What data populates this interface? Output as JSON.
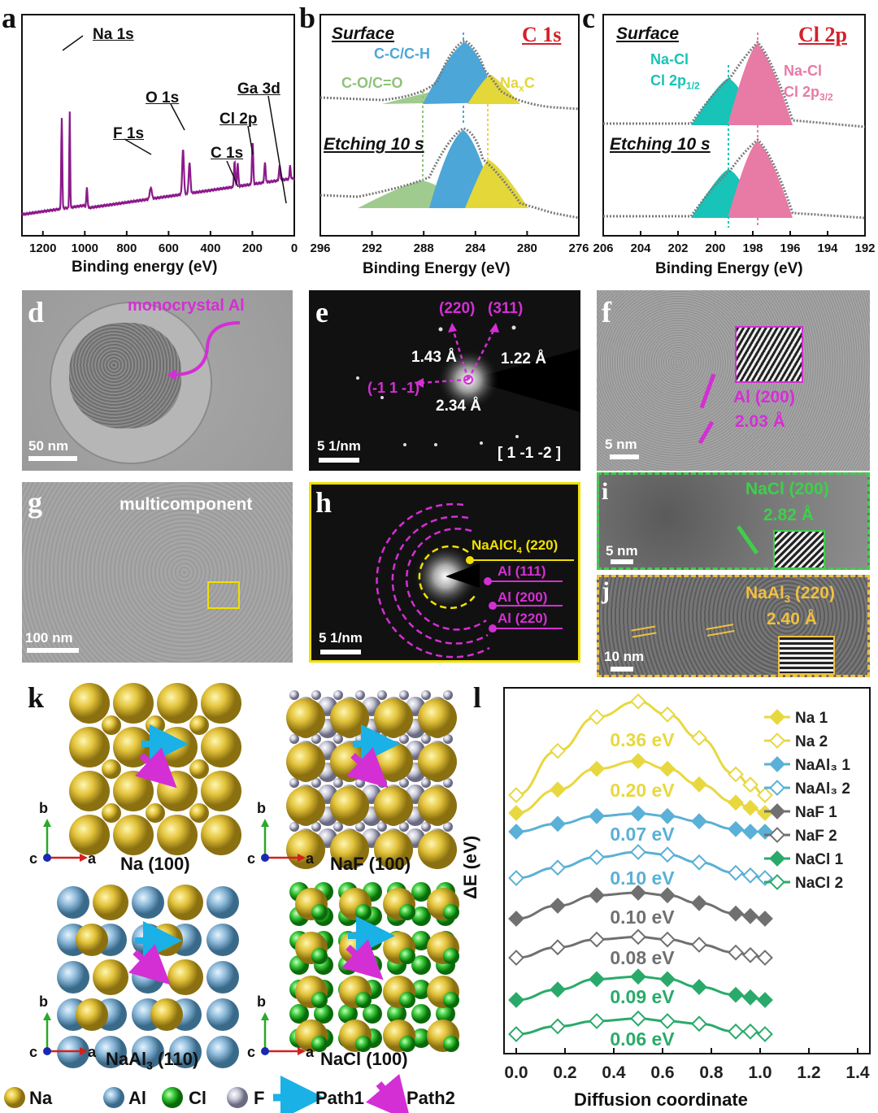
{
  "colors": {
    "purple": "#8b1a8b",
    "cc_blue": "#4da6d8",
    "cox_green": "#8fc27a",
    "nac_yellow": "#e3d73a",
    "teal": "#18c3b8",
    "pink": "#e87aa6",
    "red_label": "#d4202a",
    "magenta": "#d42fd4",
    "nacl_green": "#3ecf4a",
    "naal3_orange": "#f0c040",
    "legend_yellow": "#e8d840",
    "legend_blue": "#5ab0d6",
    "legend_gray": "#707070",
    "legend_green": "#2aaa6a"
  },
  "panel_labels": {
    "a": "a",
    "b": "b",
    "c": "c",
    "d": "d",
    "e": "e",
    "f": "f",
    "g": "g",
    "h": "h",
    "i": "i",
    "j": "j",
    "k": "k",
    "l": "l"
  },
  "panel_a": {
    "xlabel": "Binding energy (eV)",
    "xticks": [
      "1200",
      "1000",
      "800",
      "600",
      "400",
      "200",
      "0"
    ],
    "xlim": [
      1300,
      0
    ],
    "peaks": [
      {
        "label": "Na 1s",
        "energy": 1072
      },
      {
        "label": "F 1s",
        "energy": 685
      },
      {
        "label": "O 1s",
        "energy": 531
      },
      {
        "label": "Cl 2p",
        "energy": 199
      },
      {
        "label": "C 1s",
        "energy": 285
      },
      {
        "label": "Ga 3d",
        "energy": 20
      }
    ]
  },
  "panel_b": {
    "title": "C 1s",
    "surface": "Surface",
    "etching": "Etching 10 s",
    "comp_ch": "C-C/C-H",
    "comp_co": "C-O/C=O",
    "comp_nac_main": "Na",
    "comp_nac_sub": "x",
    "comp_nac_tail": "C",
    "xlabel": "Binding Energy (eV)",
    "xticks": [
      "296",
      "292",
      "288",
      "284",
      "280",
      "276"
    ],
    "xlim": [
      296,
      276
    ],
    "components_ev": {
      "C-C/C-H": 285.0,
      "C-O/C=O": 288.0,
      "NaxC": 283.0
    }
  },
  "panel_c": {
    "title": "Cl 2p",
    "surface": "Surface",
    "etching": "Etching 10 s",
    "nacl_a": "Na-Cl",
    "nacl_a_sub_main": "Cl 2p",
    "nacl_a_sub": "1/2",
    "nacl_b": "Na-Cl",
    "nacl_b_sub_main": "Cl 2p",
    "nacl_b_sub": "3/2",
    "xlabel": "Binding Energy (eV)",
    "xticks": [
      "206",
      "204",
      "202",
      "200",
      "198",
      "196",
      "194",
      "192"
    ],
    "xlim": [
      206,
      192
    ],
    "components_ev": {
      "Cl 2p1/2": 199.4,
      "Cl 2p3/2": 197.8
    }
  },
  "panel_d": {
    "annotation": "monocrystal Al",
    "scale": "50 nm"
  },
  "panel_e": {
    "p220": "(220)",
    "p311": "(311)",
    "d1": "1.43 Å",
    "d2": "1.22 Å",
    "d3": "2.34 Å",
    "p111": "(-1 1 -1)",
    "scale": "5 1/nm",
    "zone": "[ 1 -1 -2 ]"
  },
  "panel_f": {
    "label": "Al (200)",
    "d": "2.03 Å",
    "scale": "5 nm"
  },
  "panel_g": {
    "annotation": "multicomponent",
    "scale": "100 nm"
  },
  "panel_h": {
    "r1_main": "NaAlCl",
    "r1_sub": "4",
    "r1_tail": " (220)",
    "r2": "Al (111)",
    "r3": "Al (200)",
    "r4": "Al (220)",
    "scale": "5 1/nm"
  },
  "panel_i": {
    "label": "NaCl (200)",
    "d": "2.82 Å",
    "scale": "5 nm"
  },
  "panel_j": {
    "label_main": "NaAl",
    "label_sub": "3",
    "label_tail": " (220)",
    "d": "2.40 Å",
    "scale": "10 nm"
  },
  "panel_k": {
    "axis_b": "b",
    "axis_a": "a",
    "axis_c": "c",
    "s1": "Na (100)",
    "s2": "NaF (100)",
    "s3_main": "NaAl",
    "s3_sub": "3",
    "s3_tail": " (110)",
    "s4": "NaCl (100)",
    "legend": {
      "na": "Na",
      "al": "Al",
      "cl": "Cl",
      "f": "F",
      "path1": "Path1",
      "path2": "Path2"
    }
  },
  "chart_data": {
    "type": "line",
    "title": "",
    "xlabel": "Diffusion coordinate",
    "ylabel": "ΔE (eV)",
    "xlim": [
      -0.05,
      1.45
    ],
    "xticks": [
      "0.0",
      "0.2",
      "0.4",
      "0.6",
      "0.8",
      "1.0",
      "1.2",
      "1.4"
    ],
    "x": [
      0,
      0.17,
      0.33,
      0.5,
      0.62,
      0.75,
      0.9,
      0.96,
      1.02
    ],
    "series": [
      {
        "name": "Na 1",
        "marker": "filled",
        "color": "#e8d840",
        "barrier": "0.20 eV",
        "values": [
          0,
          0.09,
          0.17,
          0.2,
          0.17,
          0.11,
          0.04,
          0.02,
          0
        ]
      },
      {
        "name": "Na 2",
        "marker": "open",
        "color": "#e8d840",
        "barrier": "0.36 eV",
        "values": [
          0,
          0.17,
          0.3,
          0.36,
          0.31,
          0.22,
          0.08,
          0.04,
          0
        ]
      },
      {
        "name": "NaAl3 1",
        "marker": "filled",
        "color": "#5ab0d6",
        "barrier": "0.07 eV",
        "values": [
          0,
          0.03,
          0.06,
          0.07,
          0.06,
          0.04,
          0.01,
          0,
          0
        ]
      },
      {
        "name": "NaAl3 2",
        "marker": "open",
        "color": "#5ab0d6",
        "barrier": "0.10 eV",
        "values": [
          0,
          0.04,
          0.08,
          0.1,
          0.09,
          0.06,
          0.02,
          0.01,
          0
        ]
      },
      {
        "name": "NaF 1",
        "marker": "filled",
        "color": "#707070",
        "barrier": "0.10 eV",
        "values": [
          0,
          0.05,
          0.09,
          0.1,
          0.09,
          0.06,
          0.02,
          0.01,
          0
        ]
      },
      {
        "name": "NaF 2",
        "marker": "open",
        "color": "#707070",
        "barrier": "0.08 eV",
        "values": [
          0,
          0.04,
          0.07,
          0.08,
          0.07,
          0.05,
          0.02,
          0.01,
          0
        ]
      },
      {
        "name": "NaCl 1",
        "marker": "filled",
        "color": "#2aaa6a",
        "barrier": "0.09 eV",
        "values": [
          0,
          0.04,
          0.08,
          0.09,
          0.08,
          0.05,
          0.02,
          0.01,
          0
        ]
      },
      {
        "name": "NaCl 2",
        "marker": "open",
        "color": "#2aaa6a",
        "barrier": "0.06 eV",
        "values": [
          0,
          0.03,
          0.05,
          0.06,
          0.05,
          0.04,
          0.01,
          0.01,
          0
        ]
      }
    ],
    "legend": [
      "Na 1",
      "Na 2",
      "NaAl3 1",
      "NaAl3 2",
      "NaF 1",
      "NaF 2",
      "NaCl 1",
      "NaCl 2"
    ]
  }
}
